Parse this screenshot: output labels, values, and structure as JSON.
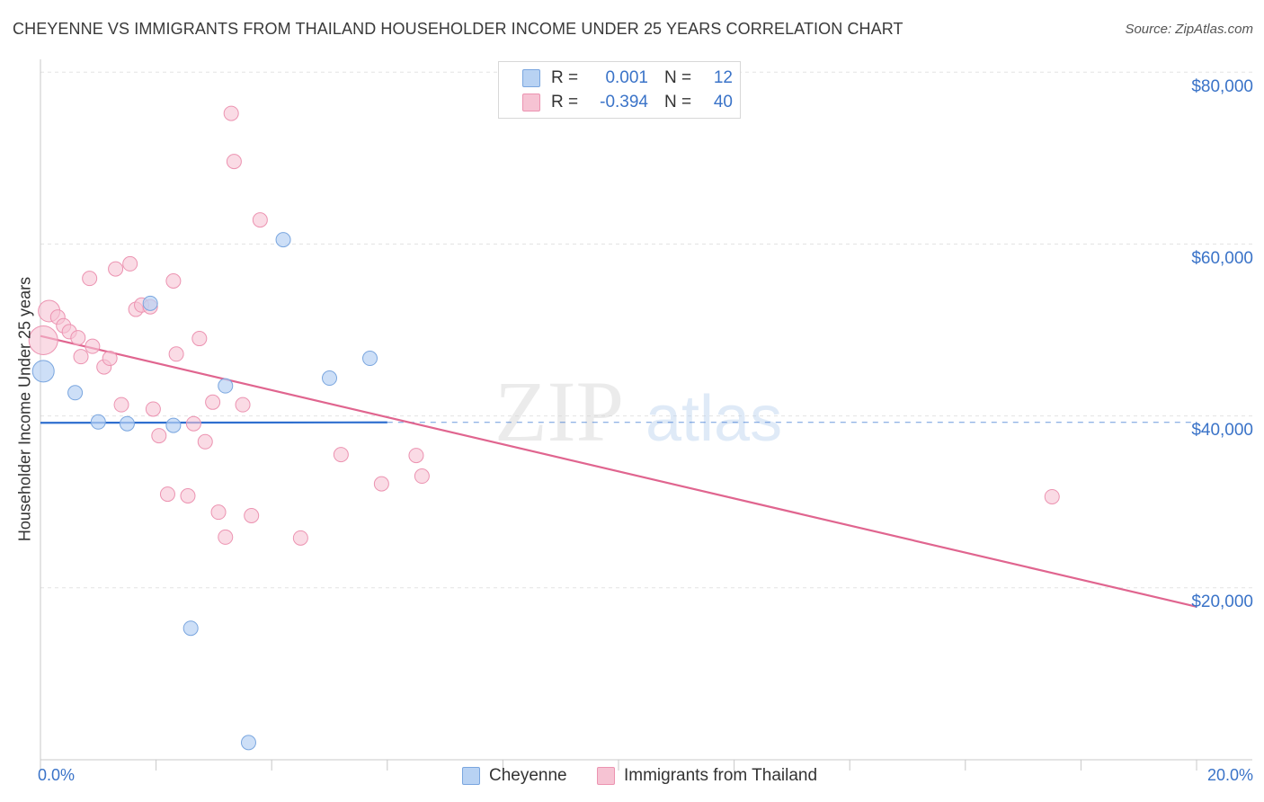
{
  "title": "CHEYENNE VS IMMIGRANTS FROM THAILAND HOUSEHOLDER INCOME UNDER 25 YEARS CORRELATION CHART",
  "source": "Source: ZipAtlas.com",
  "watermark": {
    "zip": "ZIP",
    "atlas": "atlas"
  },
  "legend": {
    "series1": {
      "r_label": "R =",
      "r_value": "0.001",
      "n_label": "N =",
      "n_value": "12"
    },
    "series2": {
      "r_label": "R =",
      "r_value": "-0.394",
      "n_label": "N =",
      "n_value": "40"
    }
  },
  "bottom_legend": {
    "series1": "Cheyenne",
    "series2": "Immigrants from Thailand"
  },
  "colors": {
    "cheyenne_fill": "#b8d2f3",
    "cheyenne_stroke": "#7aa6df",
    "cheyenne_line": "#2f6fcf",
    "thai_fill": "#f6c3d3",
    "thai_stroke": "#ec93b1",
    "thai_line": "#e0658f",
    "grid": "#e3e3e3",
    "axis_text": "#3a73c8"
  },
  "chart_data": {
    "type": "scatter",
    "title": "CHEYENNE VS IMMIGRANTS FROM THAILAND HOUSEHOLDER INCOME UNDER 25 YEARS CORRELATION CHART",
    "xlabel": "",
    "ylabel": "Householder Income Under 25 years",
    "xlim": [
      0,
      20
    ],
    "ylim": [
      0,
      80000
    ],
    "x_tick_labels": [
      "0.0%",
      "20.0%"
    ],
    "y_ticks": [
      {
        "value": 20000,
        "label": "$20,000"
      },
      {
        "value": 40000,
        "label": "$40,000"
      },
      {
        "value": 60000,
        "label": "$60,000"
      },
      {
        "value": 80000,
        "label": "$80,000"
      }
    ],
    "series": [
      {
        "name": "Cheyenne",
        "points": [
          [
            0.05,
            45200,
            12
          ],
          [
            0.6,
            42700,
            8
          ],
          [
            1.0,
            39300,
            8
          ],
          [
            1.5,
            39100,
            8
          ],
          [
            1.9,
            53100,
            8
          ],
          [
            2.3,
            38900,
            8
          ],
          [
            2.6,
            15300,
            8
          ],
          [
            3.2,
            43500,
            8
          ],
          [
            3.6,
            2000,
            8
          ],
          [
            4.2,
            60500,
            8
          ],
          [
            5.0,
            44400,
            8
          ],
          [
            5.7,
            46700,
            8
          ]
        ],
        "trend": {
          "x": [
            0.0,
            6.0
          ],
          "y": [
            39200,
            39250
          ],
          "dash_to": 20.0
        }
      },
      {
        "name": "Immigrants from Thailand",
        "points": [
          [
            0.05,
            48800,
            16
          ],
          [
            0.15,
            52200,
            12
          ],
          [
            0.3,
            51500,
            8
          ],
          [
            0.4,
            50500,
            8
          ],
          [
            0.5,
            49800,
            8
          ],
          [
            0.65,
            49100,
            8
          ],
          [
            0.7,
            46900,
            8
          ],
          [
            0.85,
            56000,
            8
          ],
          [
            0.9,
            48100,
            8
          ],
          [
            1.1,
            45700,
            8
          ],
          [
            1.2,
            46700,
            8
          ],
          [
            1.3,
            57100,
            8
          ],
          [
            1.4,
            41300,
            8
          ],
          [
            1.55,
            57700,
            8
          ],
          [
            1.65,
            52400,
            8
          ],
          [
            1.75,
            52900,
            8
          ],
          [
            1.9,
            52700,
            8
          ],
          [
            1.95,
            40800,
            8
          ],
          [
            2.05,
            37700,
            8
          ],
          [
            2.2,
            30900,
            8
          ],
          [
            2.3,
            55700,
            8
          ],
          [
            2.35,
            47200,
            8
          ],
          [
            2.55,
            30700,
            8
          ],
          [
            2.65,
            39100,
            8
          ],
          [
            2.75,
            49000,
            8
          ],
          [
            2.85,
            37000,
            8
          ],
          [
            2.98,
            41600,
            8
          ],
          [
            3.08,
            28800,
            8
          ],
          [
            3.2,
            25900,
            8
          ],
          [
            3.3,
            75200,
            8
          ],
          [
            3.35,
            69600,
            8
          ],
          [
            3.5,
            41300,
            8
          ],
          [
            3.65,
            28400,
            8
          ],
          [
            3.8,
            62800,
            8
          ],
          [
            4.5,
            25800,
            8
          ],
          [
            5.2,
            35500,
            8
          ],
          [
            5.9,
            32100,
            8
          ],
          [
            6.5,
            35400,
            8
          ],
          [
            6.6,
            33000,
            8
          ],
          [
            17.5,
            30600,
            8
          ]
        ],
        "trend": {
          "x": [
            0.0,
            20.0
          ],
          "y": [
            49300,
            17800
          ]
        }
      }
    ]
  }
}
